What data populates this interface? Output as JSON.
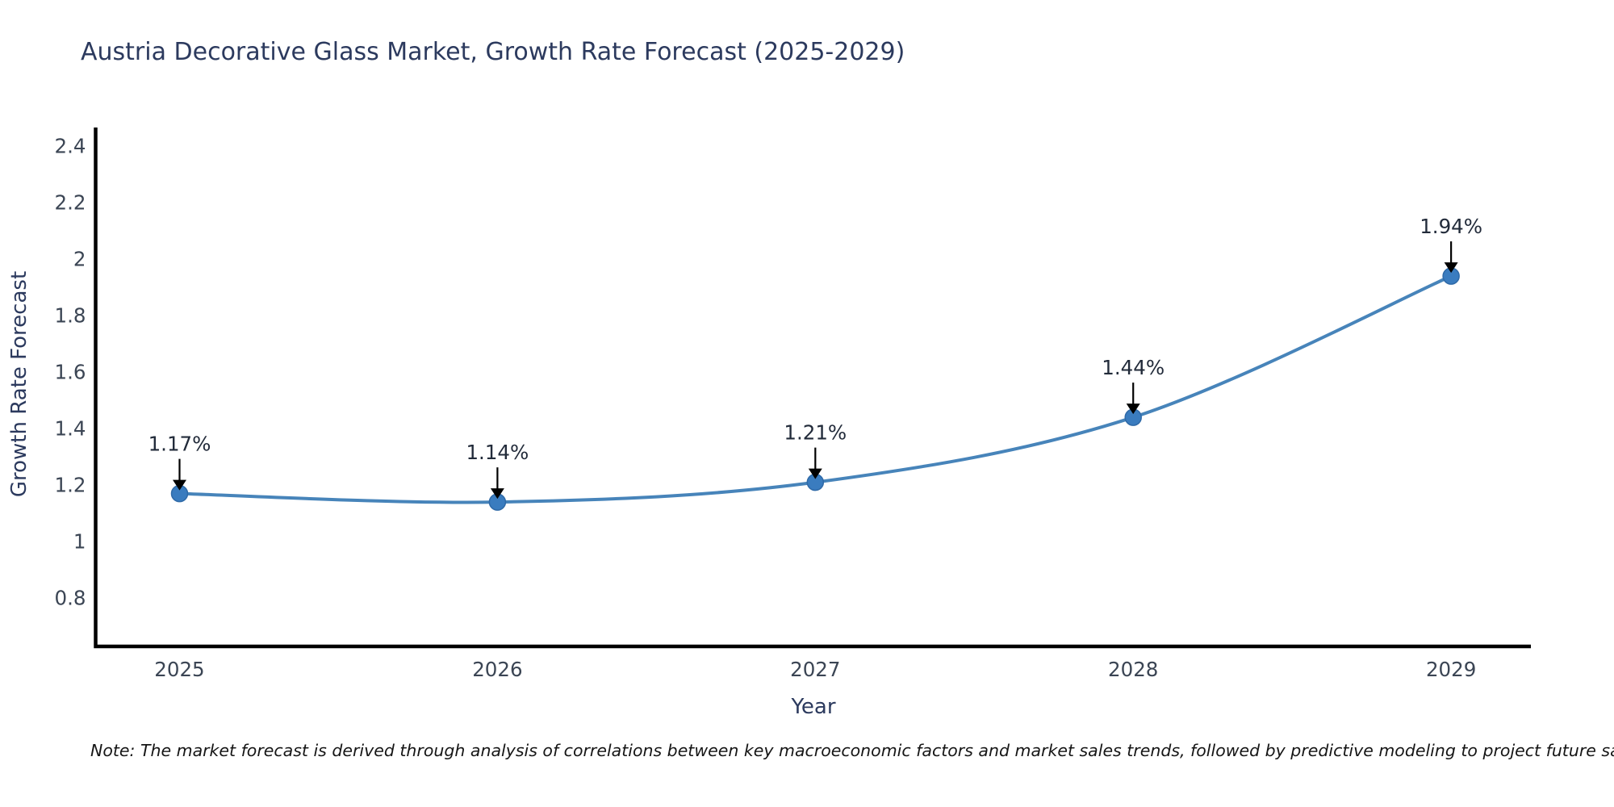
{
  "chart_data": {
    "type": "line",
    "title": "Austria Decorative Glass Market, Growth Rate Forecast (2025-2029)",
    "xlabel": "Year",
    "ylabel": "Growth Rate Forecast",
    "x": [
      2025,
      2026,
      2027,
      2028,
      2029
    ],
    "values": [
      1.17,
      1.14,
      1.21,
      1.44,
      1.94
    ],
    "point_labels": [
      "1.17%",
      "1.14%",
      "1.21%",
      "1.44%",
      "1.94%"
    ],
    "xtick_labels": [
      "2025",
      "2026",
      "2027",
      "2028",
      "2029"
    ],
    "yticks": [
      0.8,
      1.0,
      1.2,
      1.4,
      1.6,
      1.8,
      2.0,
      2.2,
      2.4
    ],
    "ytick_labels": [
      "0.8",
      "1",
      "1.2",
      "1.4",
      "1.6",
      "1.8",
      "2",
      "2.2",
      "2.4"
    ],
    "xlim": [
      2024.736,
      2029.251
    ],
    "ylim": [
      0.629,
      2.466
    ],
    "grid": false,
    "legend": false,
    "line_color": "#4784ba",
    "marker_color": "#3a7cbf",
    "marker_edge_color": "#2f6aa8",
    "axis_color": "#000000",
    "tick_color": "#3b4554",
    "annotation_color": "#222b3a",
    "arrow_color": "#000000",
    "note": "Note: The market forecast is derived through analysis of correlations between key macroeconomic factors and market sales trends, followed by predictive modeling to project future sales"
  }
}
